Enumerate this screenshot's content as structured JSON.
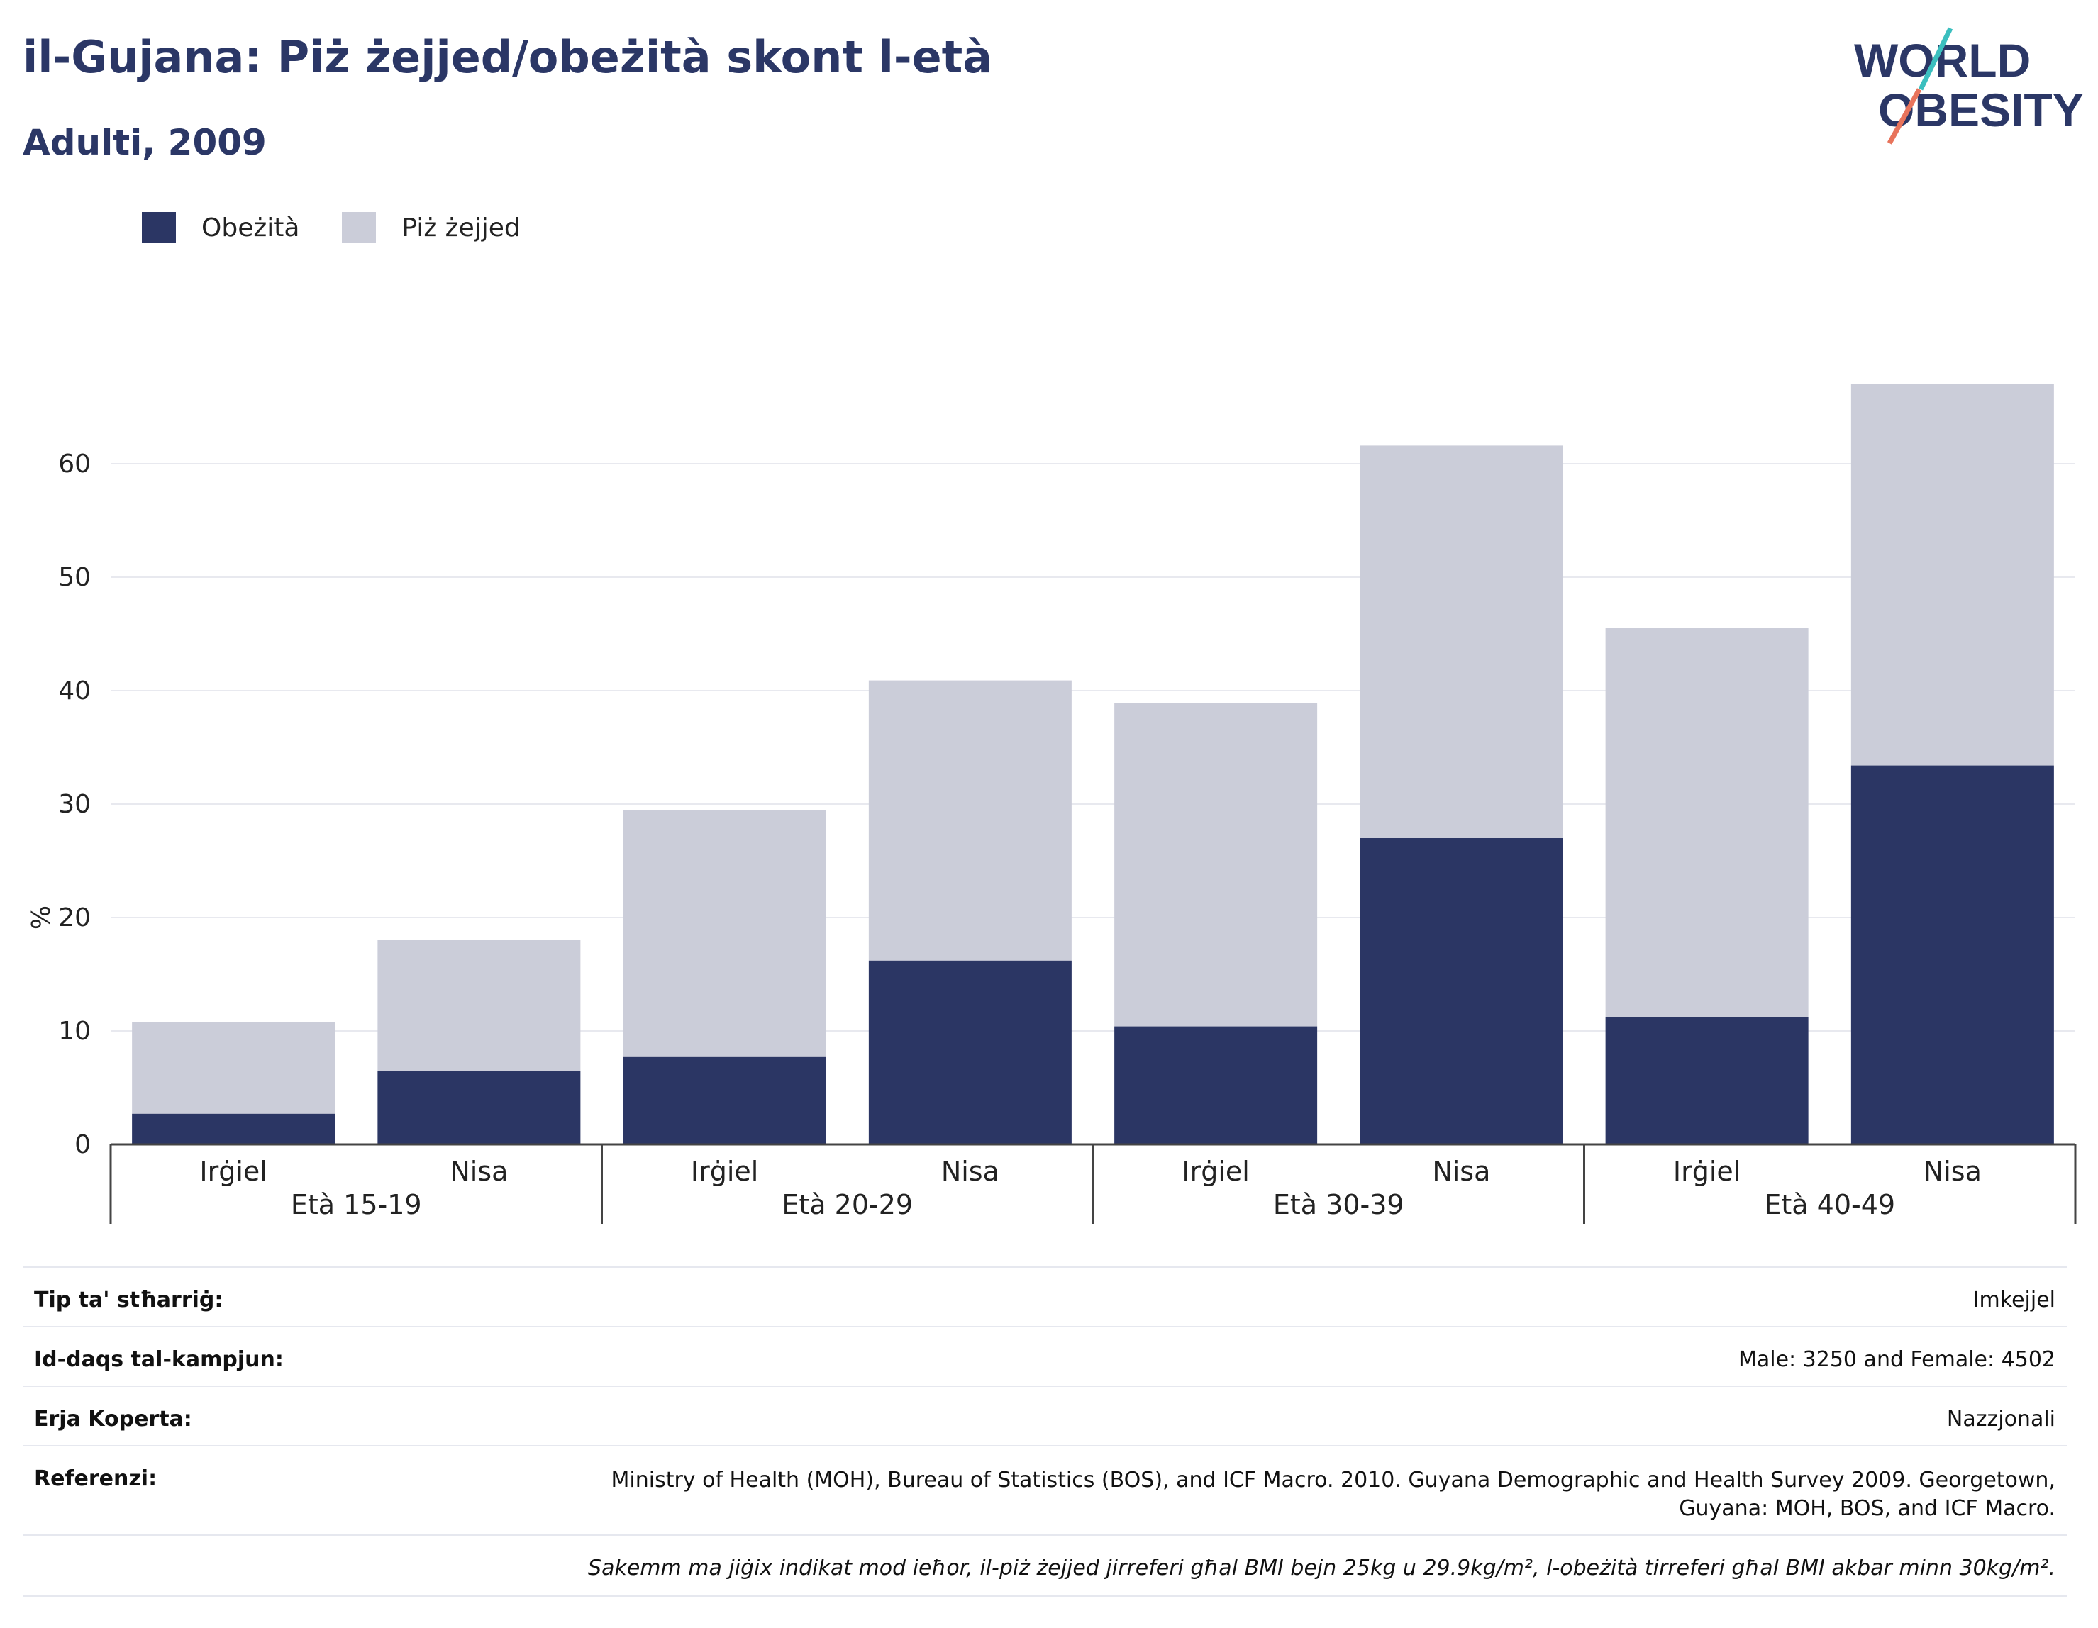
{
  "title": "il-Gujana: Piż żejjed/obeżità skont l-età",
  "subtitle": "Adulti, 2009",
  "logo": {
    "line1": "WORLD",
    "line2": "OBESITY"
  },
  "colors": {
    "obesity": "#2b3664",
    "overweight": "#cbcdd9",
    "accent_teal": "#3bbfbf",
    "accent_red": "#e8745c",
    "text": "#2b3766"
  },
  "legend": [
    {
      "label": "Obeżità",
      "color": "#2b3664"
    },
    {
      "label": "Piż żejjed",
      "color": "#cbcdd9"
    }
  ],
  "chart_data": {
    "type": "bar",
    "stacked": true,
    "ylabel": "%",
    "ylim": [
      0,
      70
    ],
    "yticks": [
      0,
      10,
      20,
      30,
      40,
      50,
      60
    ],
    "grid": true,
    "legend_position": "top-left",
    "categories": [
      "Irġiel",
      "Nisa",
      "Irġiel",
      "Nisa",
      "Irġiel",
      "Nisa",
      "Irġiel",
      "Nisa"
    ],
    "groups": [
      "Età 15-19",
      "Età 20-29",
      "Età 30-39",
      "Età 40-49"
    ],
    "series": [
      {
        "name": "Obeżità",
        "values": [
          2.7,
          6.5,
          7.7,
          16.2,
          10.4,
          27.0,
          11.2,
          33.4
        ]
      },
      {
        "name": "Piż żejjed",
        "values": [
          8.1,
          11.5,
          21.8,
          24.7,
          28.5,
          34.6,
          34.3,
          33.6
        ]
      }
    ]
  },
  "info": [
    {
      "key": "Tip ta' stħarriġ:",
      "value": "Imkejjel"
    },
    {
      "key": "Id-daqs tal-kampjun:",
      "value": "Male: 3250 and Female: 4502"
    },
    {
      "key": "Erja Koperta:",
      "value": "Nazzjonali"
    },
    {
      "key": "Referenzi:",
      "value": "Ministry of Health (MOH), Bureau of Statistics (BOS), and ICF Macro. 2010. Guyana Demographic and Health Survey 2009. Georgetown, Guyana: MOH, BOS, and ICF Macro."
    }
  ],
  "note": "Sakemm ma jiġix indikat mod ieħor, il-piż żejjed jirreferi għal BMI bejn 25kg u 29.9kg/m², l-obeżità tirreferi għal BMI akbar minn 30kg/m²."
}
